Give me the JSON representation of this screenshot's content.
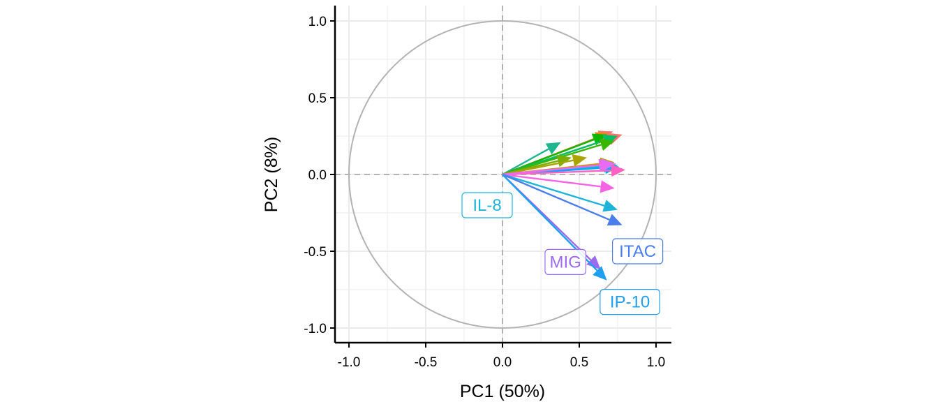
{
  "chart_data": {
    "type": "scatter",
    "subtype": "pca-variable-correlation-circle",
    "xlabel": "PC1 (50%)",
    "ylabel": "PC2 (8%)",
    "xlim": [
      -1.0,
      1.0
    ],
    "ylim": [
      -1.0,
      1.0
    ],
    "x_ticks": [
      "-1.0",
      "-0.5",
      "0.0",
      "0.5",
      "1.0"
    ],
    "y_ticks": [
      "1.0",
      "0.5",
      "0.0",
      "-0.5",
      "-1.0"
    ],
    "grid": true,
    "unit_circle": true,
    "reference_lines": [
      "x=0",
      "y=0"
    ],
    "vectors": [
      {
        "x": 0.38,
        "y": 0.21,
        "color": "#1fb58f",
        "label": ""
      },
      {
        "x": 0.72,
        "y": 0.28,
        "color": "#f8766d",
        "label": ""
      },
      {
        "x": 0.7,
        "y": 0.27,
        "color": "#e68613",
        "label": ""
      },
      {
        "x": 0.68,
        "y": 0.26,
        "color": "#0cb702",
        "label": ""
      },
      {
        "x": 0.78,
        "y": 0.26,
        "color": "#f8766d",
        "label": ""
      },
      {
        "x": 0.75,
        "y": 0.25,
        "color": "#00be67",
        "label": ""
      },
      {
        "x": 0.73,
        "y": 0.22,
        "color": "#39b600",
        "label": ""
      },
      {
        "x": 0.45,
        "y": 0.11,
        "color": "#7cae00",
        "label": ""
      },
      {
        "x": 0.55,
        "y": 0.11,
        "color": "#aba300",
        "label": ""
      },
      {
        "x": 0.73,
        "y": 0.08,
        "color": "#cd9600",
        "label": ""
      },
      {
        "x": 0.75,
        "y": 0.06,
        "color": "#00bfc4",
        "label": ""
      },
      {
        "x": 0.76,
        "y": 0.05,
        "color": "#00a9ff",
        "label": ""
      },
      {
        "x": 0.74,
        "y": 0.07,
        "color": "#c77cff",
        "label": ""
      },
      {
        "x": 0.8,
        "y": 0.03,
        "color": "#ff61c3",
        "label": ""
      },
      {
        "x": 0.72,
        "y": 0.07,
        "color": "#e76bf3",
        "label": ""
      },
      {
        "x": 0.73,
        "y": -0.09,
        "color": "#f564e3",
        "label": ""
      },
      {
        "x": 0.75,
        "y": -0.23,
        "color": "#1eb4d9",
        "label": "IL-8"
      },
      {
        "x": 0.78,
        "y": -0.33,
        "color": "#4a7eec",
        "label": "ITAC"
      },
      {
        "x": 0.64,
        "y": -0.62,
        "color": "#9b6bf2",
        "label": "MIG"
      },
      {
        "x": 0.68,
        "y": -0.69,
        "color": "#1f9ff0",
        "label": "IP-10"
      }
    ],
    "colors": {
      "circle": "#b3b3b3",
      "grid": "#ebebeb",
      "reference": "#b3b3b3",
      "axis": "#000000"
    }
  }
}
